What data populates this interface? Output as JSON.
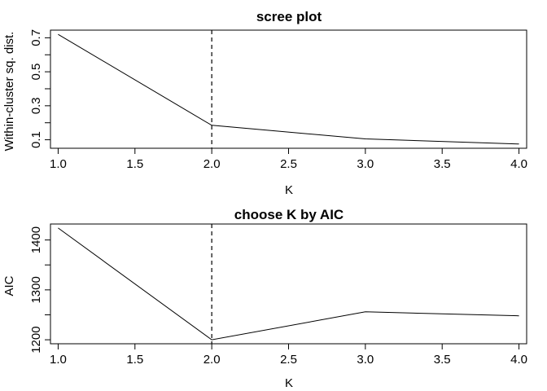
{
  "chart_data": [
    {
      "type": "line",
      "title": "scree plot",
      "xlabel": "K",
      "ylabel": "Within-cluster sq. dist.",
      "x": [
        1,
        2,
        3,
        4
      ],
      "series": [
        {
          "values": [
            0.72,
            0.185,
            0.105,
            0.075
          ]
        }
      ],
      "xlim": [
        0.95,
        4.05
      ],
      "ylim": [
        0.05,
        0.745
      ],
      "xticks": [
        "1.0",
        "1.5",
        "2.0",
        "2.5",
        "3.0",
        "3.5",
        "4.0"
      ],
      "yticks": [
        "0.1",
        "0.3",
        "0.5",
        "0.7"
      ],
      "ytick_values": [
        0.1,
        0.3,
        0.5,
        0.7
      ],
      "ytick_minor": [
        0.2,
        0.4,
        0.6
      ],
      "vline": 2,
      "grid": false
    },
    {
      "type": "line",
      "title": "choose K by AIC",
      "xlabel": "K",
      "ylabel": "AIC",
      "x": [
        1,
        2,
        3,
        4
      ],
      "series": [
        {
          "values": [
            1424,
            1200,
            1256,
            1248
          ]
        }
      ],
      "xlim": [
        0.95,
        4.05
      ],
      "ylim": [
        1192,
        1432
      ],
      "xticks": [
        "1.0",
        "1.5",
        "2.0",
        "2.5",
        "3.0",
        "3.5",
        "4.0"
      ],
      "yticks": [
        "1200",
        "1300",
        "1400"
      ],
      "ytick_values": [
        1200,
        1300,
        1400
      ],
      "ytick_minor": [
        1250,
        1350
      ],
      "vline": 2,
      "grid": false
    }
  ]
}
